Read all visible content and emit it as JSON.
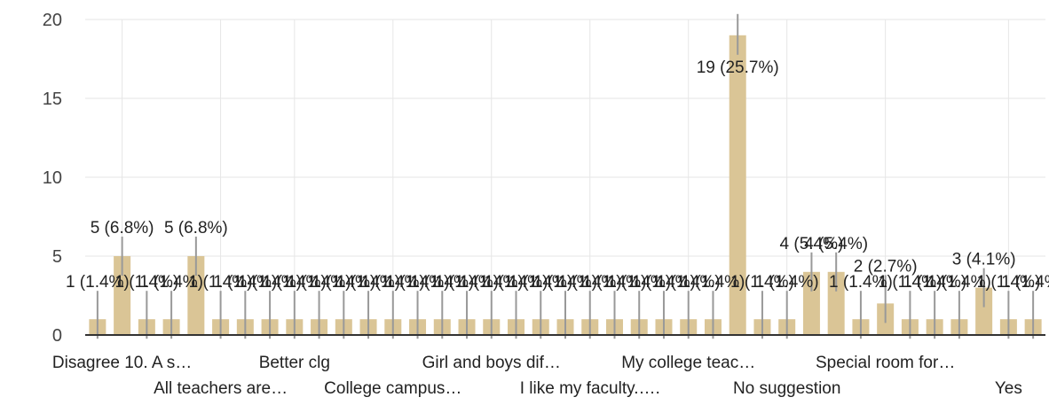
{
  "colors": {
    "bar": "#dac596",
    "grid": "#e6e6e6",
    "axis": "#333333",
    "leader": "#999999"
  },
  "chart_data": {
    "type": "bar",
    "title": "",
    "xlabel": "",
    "ylabel": "",
    "ylim": [
      0,
      20
    ],
    "yticks": [
      0,
      5,
      10,
      15,
      20
    ],
    "grid": true,
    "legend": "none",
    "values": [
      1,
      5,
      1,
      1,
      5,
      1,
      1,
      1,
      1,
      1,
      1,
      1,
      1,
      1,
      1,
      1,
      1,
      1,
      1,
      1,
      1,
      1,
      1,
      1,
      1,
      1,
      19,
      1,
      1,
      4,
      4,
      1,
      2,
      1,
      1,
      1,
      3,
      1,
      1
    ],
    "data_labels": [
      "1 (1.4%)",
      "5 (6.8%)",
      "1 (1.4%)",
      "1 (1.4%)",
      "5 (6.8%)",
      "1 (1.4%)",
      "1 (1.4%)",
      "1 (1.4%)",
      "1 (1.4%)",
      "1 (1.4%)",
      "1 (1.4%)",
      "1 (1.4%)",
      "1 (1.4%)",
      "1 (1.4%)",
      "1 (1.4%)",
      "1 (1.4%)",
      "1 (1.4%)",
      "1 (1.4%)",
      "1 (1.4%)",
      "1 (1.4%)",
      "1 (1.4%)",
      "1 (1.4%)",
      "1 (1.4%)",
      "1 (1.4%)",
      "1 (1.4%)",
      "1 (1.4%)",
      "19 (25.7%)",
      "1 (1.4%)",
      "1 (1.4%)",
      "4 (5.4%)",
      "4 (5.4%)",
      "1 (1.4%)",
      "2 (2.7%)",
      "1 (1.4%)",
      "1 (1.4%)",
      "1 (1.4%)",
      "3 (4.1%)",
      "1 (1.4%)",
      "1 (1.4%)"
    ],
    "category_labels": [
      {
        "index": 1,
        "row": 1,
        "text": "Disagree 10. A s…"
      },
      {
        "index": 5,
        "row": 2,
        "text": "All teachers are…"
      },
      {
        "index": 8,
        "row": 1,
        "text": "Better clg"
      },
      {
        "index": 12,
        "row": 2,
        "text": "College campus…"
      },
      {
        "index": 16,
        "row": 1,
        "text": "Girl and boys dif…"
      },
      {
        "index": 20,
        "row": 2,
        "text": "I like my faculty.…."
      },
      {
        "index": 24,
        "row": 1,
        "text": "My college teac…"
      },
      {
        "index": 28,
        "row": 2,
        "text": "No suggestion"
      },
      {
        "index": 32,
        "row": 1,
        "text": "Special room for…"
      },
      {
        "index": 37,
        "row": 2,
        "text": "Yes"
      }
    ]
  }
}
